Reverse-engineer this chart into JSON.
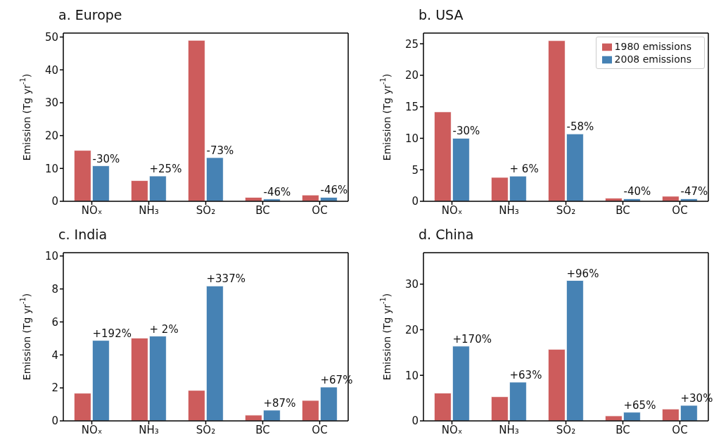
{
  "chart_data": [
    {
      "type": "bar",
      "title": "a. Europe",
      "ylabel": "Emission (Tg yr$^{-1}$)",
      "categories": [
        "NOₓ",
        "NH₃",
        "SO₂",
        "BC",
        "OC"
      ],
      "series": [
        {
          "color": "#cd5c5c",
          "values": [
            15.5,
            6.3,
            49.0,
            1.2,
            1.9
          ]
        },
        {
          "color": "#4682b4",
          "values": [
            10.8,
            7.7,
            13.3,
            0.7,
            1.2
          ]
        }
      ],
      "ylim": [
        0,
        51.2
      ],
      "yticks": [
        0,
        10,
        20,
        30,
        40,
        50
      ],
      "grid": false,
      "legend": false,
      "annotations": [
        {
          "text": "-30%",
          "x": "NOₓ",
          "y": 10.8
        },
        {
          "text": "+25%",
          "x": "NH₃",
          "y": 7.7
        },
        {
          "text": "-73%",
          "x": "SO₂",
          "y": 13.3
        },
        {
          "text": "-46%",
          "x": "BC",
          "y": 0.7
        },
        {
          "text": "-46%",
          "x": "OC",
          "y": 1.2
        }
      ]
    },
    {
      "type": "bar",
      "title": "b. USA",
      "ylabel": "Emission (Tg yr$^{-1}$)",
      "categories": [
        "NOₓ",
        "NH₃",
        "SO₂",
        "BC",
        "OC"
      ],
      "series": [
        {
          "name": "1980 emissions",
          "color": "#cd5c5c",
          "values": [
            14.2,
            3.8,
            25.5,
            0.5,
            0.8
          ]
        },
        {
          "name": "2008 emissions",
          "color": "#4682b4",
          "values": [
            10.0,
            4.0,
            10.7,
            0.4,
            0.4
          ]
        }
      ],
      "ylim": [
        0,
        26.7
      ],
      "yticks": [
        0,
        5,
        10,
        15,
        20,
        25
      ],
      "grid": false,
      "legend": "top right",
      "annotations": [
        {
          "text": "-30%",
          "x": "NOₓ",
          "y": 10.0
        },
        {
          "text": "+ 6%",
          "x": "NH₃",
          "y": 4.0
        },
        {
          "text": "-58%",
          "x": "SO₂",
          "y": 10.7
        },
        {
          "text": "-40%",
          "x": "BC",
          "y": 0.4
        },
        {
          "text": "-47%",
          "x": "OC",
          "y": 0.4
        }
      ]
    },
    {
      "type": "bar",
      "title": "c. India",
      "ylabel": "Emission (Tg yr$^{-1}$)",
      "categories": [
        "NOₓ",
        "NH₃",
        "SO₂",
        "BC",
        "OC"
      ],
      "series": [
        {
          "color": "#cd5c5c",
          "values": [
            1.68,
            5.02,
            1.85,
            0.35,
            1.24
          ]
        },
        {
          "color": "#4682b4",
          "values": [
            4.88,
            5.14,
            8.18,
            0.65,
            2.05
          ]
        }
      ],
      "ylim": [
        0,
        10.2
      ],
      "yticks": [
        0,
        2,
        4,
        6,
        8,
        10
      ],
      "grid": false,
      "legend": false,
      "annotations": [
        {
          "text": "+192%",
          "x": "NOₓ",
          "y": 4.88
        },
        {
          "text": "+ 2%",
          "x": "NH₃",
          "y": 5.14
        },
        {
          "text": "+337%",
          "x": "SO₂",
          "y": 8.18
        },
        {
          "text": "+87%",
          "x": "BC",
          "y": 0.65
        },
        {
          "text": "+67%",
          "x": "OC",
          "y": 2.05
        }
      ]
    },
    {
      "type": "bar",
      "title": "d. China",
      "ylabel": "Emission (Tg yr$^{-1}$)",
      "categories": [
        "NOₓ",
        "NH₃",
        "SO₂",
        "BC",
        "OC"
      ],
      "series": [
        {
          "color": "#cd5c5c",
          "values": [
            6.1,
            5.3,
            15.7,
            1.1,
            2.6
          ]
        },
        {
          "color": "#4682b4",
          "values": [
            16.4,
            8.5,
            30.8,
            1.9,
            3.4
          ]
        }
      ],
      "ylim": [
        0,
        36.9
      ],
      "yticks": [
        0,
        10,
        20,
        30
      ],
      "grid": false,
      "legend": false,
      "annotations": [
        {
          "text": "+170%",
          "x": "NOₓ",
          "y": 16.4
        },
        {
          "text": "+63%",
          "x": "NH₃",
          "y": 8.5
        },
        {
          "text": "+96%",
          "x": "SO₂",
          "y": 30.8
        },
        {
          "text": "+65%",
          "x": "BC",
          "y": 1.9
        },
        {
          "text": "+30%",
          "x": "OC",
          "y": 3.4
        }
      ]
    }
  ]
}
